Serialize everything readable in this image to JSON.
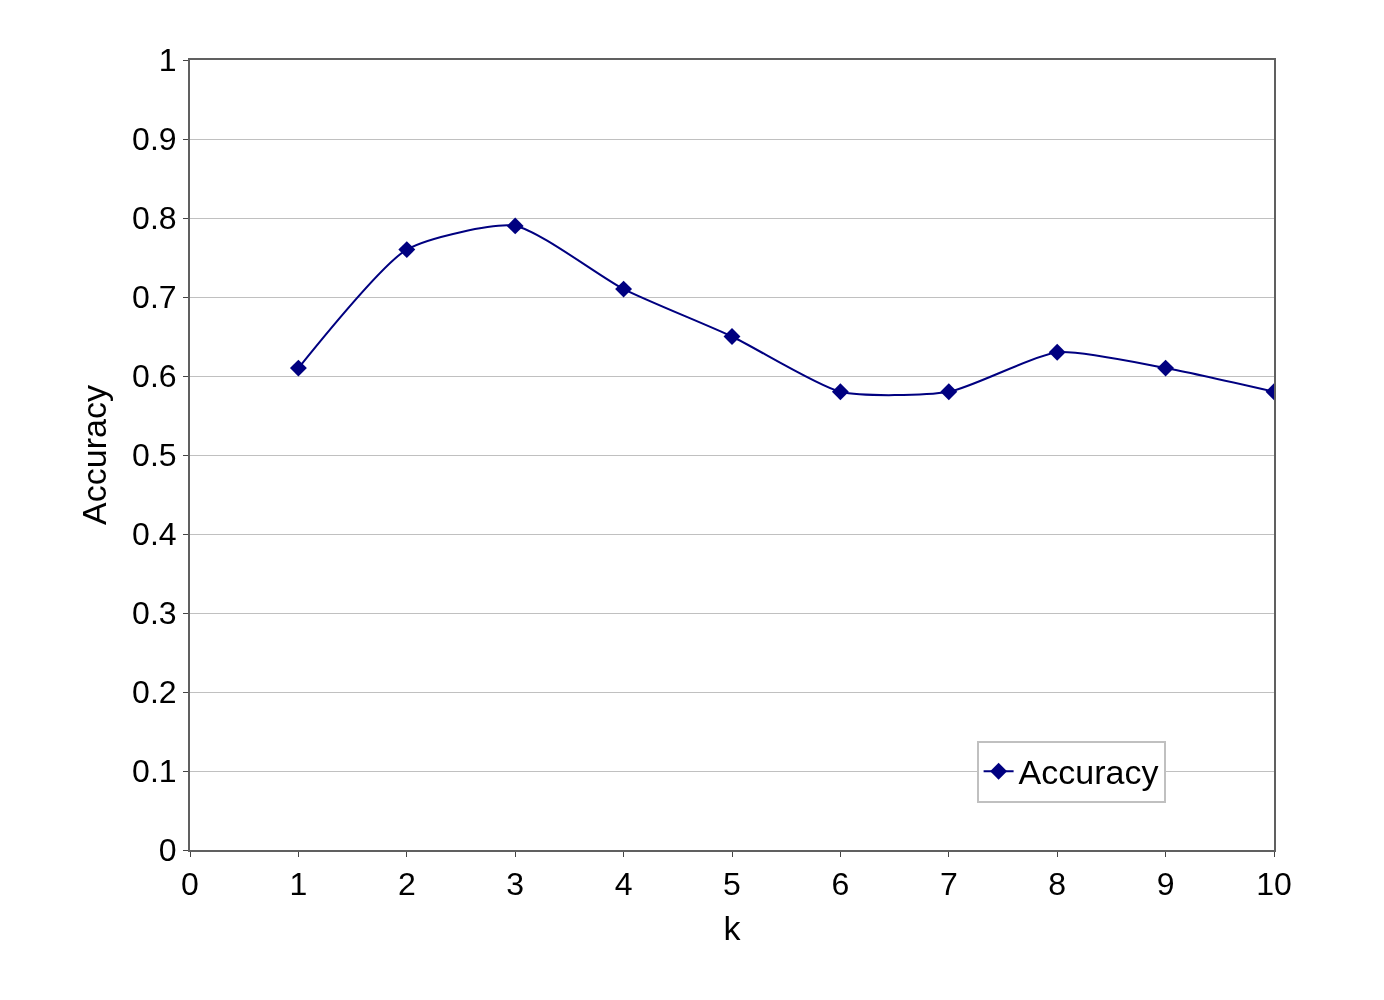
{
  "chart_data": {
    "type": "line",
    "xlabel": "k",
    "ylabel": "Accuracy",
    "x": [
      1,
      2,
      3,
      4,
      5,
      6,
      7,
      8,
      9,
      10
    ],
    "series": [
      {
        "name": "Accuracy",
        "color": "#000080",
        "values": [
          0.61,
          0.76,
          0.79,
          0.71,
          0.65,
          0.58,
          0.58,
          0.63,
          0.61,
          0.58
        ]
      }
    ],
    "xlim": [
      0,
      10
    ],
    "xticks": [
      0,
      1,
      2,
      3,
      4,
      5,
      6,
      7,
      8,
      9,
      10
    ],
    "ylim": [
      0,
      1
    ],
    "yticks": [
      0,
      0.1,
      0.2,
      0.3,
      0.4,
      0.5,
      0.6,
      0.7,
      0.8,
      0.9,
      1
    ],
    "grid": "y",
    "legend": "bottom right",
    "marker": "diamond",
    "line_style": "solid"
  }
}
